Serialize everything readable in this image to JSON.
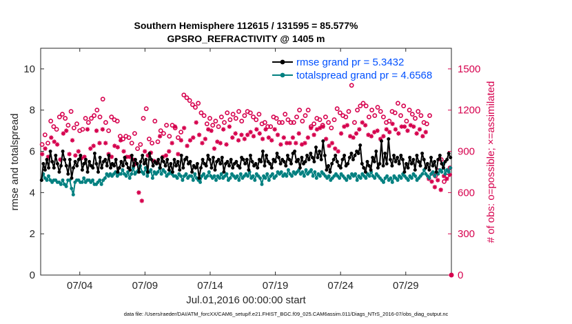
{
  "chart_data": {
    "type": "line",
    "title": [
      "Southern Hemisphere 112615 / 131595 = 85.577%",
      "GPSRO_REFRACTIVITY @ 1405 m"
    ],
    "xlabel": "Jul.01,2016 00:00:00 start",
    "ylabel": "rmse and totalspread",
    "ylabel_right": "# of obs: o=possible; ×=assimilated",
    "x_range": [
      1,
      32.5
    ],
    "xticks": [
      {
        "value": 4,
        "label": "07/04"
      },
      {
        "value": 9,
        "label": "07/09"
      },
      {
        "value": 14,
        "label": "07/14"
      },
      {
        "value": 19,
        "label": "07/19"
      },
      {
        "value": 24,
        "label": "07/24"
      },
      {
        "value": 29,
        "label": "07/29"
      }
    ],
    "ylim": [
      0,
      11
    ],
    "yticks": [
      0,
      2,
      4,
      6,
      8,
      10
    ],
    "ylim_right": [
      0,
      1650
    ],
    "yticks_right": [
      0,
      300,
      600,
      900,
      1200,
      1500
    ],
    "legend": {
      "position": "top-right"
    },
    "colors": {
      "rmse": "#000000",
      "totalspread": "#008080",
      "obs": "#d6004d",
      "legend_text": "#0050ff"
    },
    "series": [
      {
        "name": "rmse grand pr = 5.3432",
        "axis": "left",
        "marker": "filled-circle",
        "line": true,
        "values": [
          4.6,
          5.4,
          5.1,
          5.6,
          5.2,
          6.0,
          5.5,
          5.2,
          5.8,
          5.4,
          5.0,
          5.3,
          6.0,
          5.6,
          5.3,
          4.9,
          5.6,
          4.7,
          5.2,
          5.5,
          5.3,
          5.6,
          5.8,
          5.1,
          5.4,
          5.6,
          5.0,
          5.5,
          5.3,
          5.2,
          5.9,
          5.4,
          5.0,
          5.7,
          5.2,
          5.5,
          5.6,
          5.3,
          5.8,
          5.2,
          5.4,
          5.3,
          5.6,
          5.0,
          5.2,
          5.5,
          5.3,
          5.7,
          5.4,
          5.2,
          5.1,
          5.8,
          5.3,
          5.6,
          5.4,
          5.0,
          5.5,
          5.8,
          5.4,
          5.6,
          5.0,
          5.9,
          5.6,
          5.3,
          5.5,
          5.4,
          5.6,
          5.2,
          5.7,
          5.5,
          5.3,
          5.6,
          5.1,
          5.4,
          5.0,
          5.6,
          5.3,
          5.5,
          5.1,
          5.8,
          5.2,
          5.6,
          5.7,
          5.4,
          5.5,
          5.0,
          5.3,
          5.2,
          5.4,
          4.7,
          5.2,
          5.6,
          5.4,
          5.3,
          5.8,
          5.6,
          5.2,
          5.7,
          5.1,
          5.5,
          5.6,
          5.4,
          5.7,
          5.0,
          5.4,
          5.5,
          5.3,
          5.6,
          5.2,
          5.4,
          5.5,
          5.3,
          5.2,
          5.7,
          5.6,
          5.4,
          5.6,
          5.1,
          5.8,
          5.5,
          5.3,
          5.4,
          5.2,
          5.6,
          5.5,
          6.0,
          5.3,
          5.8,
          5.5,
          5.4,
          5.2,
          5.6,
          5.5,
          5.9,
          5.7,
          5.4,
          5.6,
          5.5,
          5.3,
          5.8,
          5.6,
          5.4,
          5.9,
          6.0,
          5.5,
          5.6,
          5.2,
          5.7,
          5.4,
          5.5,
          5.8,
          5.6,
          5.9,
          5.7,
          5.5,
          6.2,
          5.7,
          6.0,
          5.6,
          6.5,
          5.8,
          5.1,
          5.3,
          5.0,
          5.4,
          5.6,
          5.8,
          5.5,
          5.3,
          5.2,
          5.6,
          5.8,
          5.3,
          5.4,
          5.7,
          5.9,
          5.6,
          5.8,
          6.0,
          5.9,
          6.3,
          5.4,
          5.2,
          5.0,
          5.5,
          5.3,
          5.1,
          5.7,
          5.5,
          6.0,
          5.2,
          5.4,
          6.5,
          5.3,
          5.9,
          5.4,
          6.6,
          5.6,
          5.3,
          5.8,
          5.5,
          5.7,
          5.4,
          5.8,
          5.6,
          5.0,
          5.4,
          5.2,
          5.7,
          5.4,
          5.6,
          5.1,
          5.8,
          5.5,
          5.3,
          5.9,
          5.6,
          5.2,
          5.4,
          5.1,
          5.7,
          5.3,
          5.5,
          5.0,
          5.6,
          5.8,
          5.4,
          5.2,
          5.5,
          5.6,
          5.9,
          5.7
        ]
      },
      {
        "name": "totalspread grand pr = 4.6568",
        "axis": "left",
        "marker": "filled-circle",
        "line": true,
        "values": [
          4.6,
          4.9,
          4.7,
          4.6,
          4.8,
          4.6,
          4.5,
          4.6,
          4.6,
          4.5,
          4.5,
          4.4,
          4.6,
          4.4,
          4.3,
          4.6,
          4.6,
          4.2,
          3.9,
          4.5,
          4.6,
          4.6,
          4.5,
          4.5,
          4.7,
          4.5,
          4.6,
          4.6,
          4.5,
          4.6,
          4.4,
          4.4,
          4.5,
          4.6,
          4.4,
          4.6,
          4.7,
          4.9,
          4.8,
          4.9,
          4.8,
          4.9,
          5.0,
          4.8,
          4.9,
          4.9,
          5.1,
          4.9,
          4.8,
          5.0,
          4.7,
          4.9,
          5.2,
          4.9,
          5.0,
          5.1,
          5.3,
          5.0,
          4.9,
          5.2,
          4.8,
          5.0,
          5.1,
          4.7,
          5.0,
          4.9,
          5.0,
          5.2,
          4.9,
          5.1,
          5.0,
          4.8,
          4.9,
          5.0,
          4.9,
          4.8,
          4.8,
          4.7,
          4.9,
          4.8,
          4.6,
          4.8,
          4.9,
          4.7,
          4.8,
          4.8,
          4.6,
          4.9,
          4.7,
          4.6,
          4.5,
          4.8,
          4.9,
          4.7,
          4.8,
          5.0,
          4.8,
          4.7,
          4.8,
          4.6,
          4.8,
          4.7,
          4.9,
          4.7,
          4.8,
          4.9,
          4.6,
          4.7,
          4.9,
          4.8,
          4.7,
          4.8,
          4.6,
          4.9,
          4.7,
          4.8,
          4.9,
          4.8,
          5.0,
          4.7,
          4.8,
          4.6,
          4.9,
          4.8,
          4.7,
          4.4,
          4.8,
          4.7,
          4.9,
          4.6,
          4.8,
          4.9,
          4.7,
          4.8,
          5.0,
          4.9,
          5.0,
          4.8,
          4.9,
          4.8,
          5.1,
          4.9,
          4.8,
          5.0,
          4.9,
          5.0,
          5.1,
          4.9,
          5.0,
          4.8,
          5.1,
          4.9,
          5.0,
          5.1,
          4.8,
          5.0,
          4.7,
          4.9,
          4.8,
          5.0,
          4.9,
          4.8,
          4.7,
          4.8,
          4.6,
          4.7,
          4.8,
          4.9,
          4.8,
          4.7,
          4.9,
          4.8,
          4.7,
          4.6,
          4.8,
          4.7,
          4.9,
          4.8,
          4.9,
          4.6,
          4.8,
          4.7,
          4.9,
          4.8,
          4.7,
          4.9,
          4.8,
          5.0,
          4.8,
          4.7,
          4.9,
          4.8,
          4.7,
          4.6,
          4.5,
          4.7,
          4.8,
          4.6,
          4.7,
          4.5,
          4.8,
          4.7,
          4.6,
          4.8,
          4.7,
          4.9,
          4.8,
          4.7,
          4.6,
          4.8,
          4.7,
          4.9,
          4.8,
          4.6,
          4.7,
          4.8,
          4.9,
          5.1,
          4.9,
          4.8,
          4.7,
          4.9,
          5.0,
          4.8,
          5.0,
          4.9,
          5.1,
          5.0,
          5.4,
          4.9,
          5.1,
          5.0,
          5.2
        ]
      },
      {
        "name": "obs possible (o)",
        "axis": "right",
        "marker": "open-circle",
        "line": false,
        "values": [
          950,
          1020,
          960,
          1120,
          1080,
          1060,
          1150,
          1170,
          1140,
          1090,
          1190,
          1070,
          1100,
          1050,
          1060,
          1140,
          1110,
          1140,
          1160,
          1200,
          1150,
          1280,
          1110,
          1050,
          1150,
          1130,
          1120,
          1010,
          990,
          1010,
          1000,
          960,
          1030,
          920,
          950,
          1140,
          1210,
          990,
          960,
          1120,
          970,
          1050,
          1030,
          1090,
          1010,
          1090,
          1070,
          1000,
          1040,
          1310,
          1290,
          1270,
          1240,
          1220,
          1250,
          1180,
          1160,
          1100,
          1140,
          1090,
          1120,
          1080,
          1150,
          1110,
          1180,
          1130,
          1170,
          1140,
          1190,
          1120,
          1160,
          1190,
          1180,
          1150,
          1130,
          1170,
          1100,
          1110,
          1080,
          1080,
          1150,
          1140,
          1110,
          1110,
          1170,
          1130,
          1110,
          1110,
          1150,
          1200,
          1120,
          1160,
          1200,
          1080,
          1100,
          1140,
          1130,
          1090,
          1150,
          1110,
          1070,
          1130,
          1210,
          1180,
          1160,
          1150,
          1190,
          1380,
          1110,
          1200,
          1230,
          1250,
          1230,
          1150,
          1200,
          1160,
          1220,
          1190,
          1150,
          1110,
          1120,
          1190,
          1180,
          1250,
          1160,
          1230,
          1120,
          1200,
          1170,
          1140,
          1190,
          1160,
          1110,
          1100,
          1160,
          740,
          720,
          760,
          840,
          680,
          720,
          780
        ]
      },
      {
        "name": "obs assimilated (×)",
        "axis": "right",
        "marker": "asterisk",
        "line": false,
        "values": [
          880,
          920,
          860,
          1000,
          970,
          950,
          840,
          1030,
          1050,
          880,
          980,
          870,
          900,
          850,
          860,
          1060,
          920,
          940,
          1050,
          960,
          1060,
          960,
          880,
          860,
          940,
          930,
          980,
          900,
          860,
          860,
          840,
          810,
          600,
          540,
          900,
          870,
          890,
          830,
          820,
          1010,
          860,
          870,
          900,
          960,
          1080,
          880,
          980,
          1070,
          940,
          980,
          1000,
          1110,
          1020,
          960,
          990,
          1060,
          1050,
          920,
          970,
          960,
          1060,
          950,
          1080,
          1000,
          1030,
          980,
          1020,
          990,
          1020,
          1040,
          1010,
          1060,
          1030,
          990,
          1060,
          1000,
          980,
          1060,
          1020,
          950,
          1000,
          960,
          960,
          1000,
          960,
          1030,
          950,
          960,
          1000,
          1070,
          1020,
          1060,
          1070,
          1080,
          990,
          940,
          960,
          920,
          900,
          1030,
          1080,
          1090,
          1010,
          1000,
          1030,
          1060,
          1110,
          1090,
          1020,
          1010,
          1040,
          1050,
          990,
          1010,
          1060,
          1040,
          1100,
          1060,
          1030,
          1080,
          1080,
          1050,
          1090,
          1080,
          1030,
          1060,
          1010,
          1040,
          700,
          680,
          640,
          690,
          620,
          720,
          700,
          730
        ]
      }
    ]
  },
  "footer": "data file: /Users/raeder/DAI/ATM_forcXX/CAM6_setup/f.e21.FHIST_BGC.f09_025.CAM6assim.011/Diags_NTrS_2016-07/obs_diag_output.nc"
}
